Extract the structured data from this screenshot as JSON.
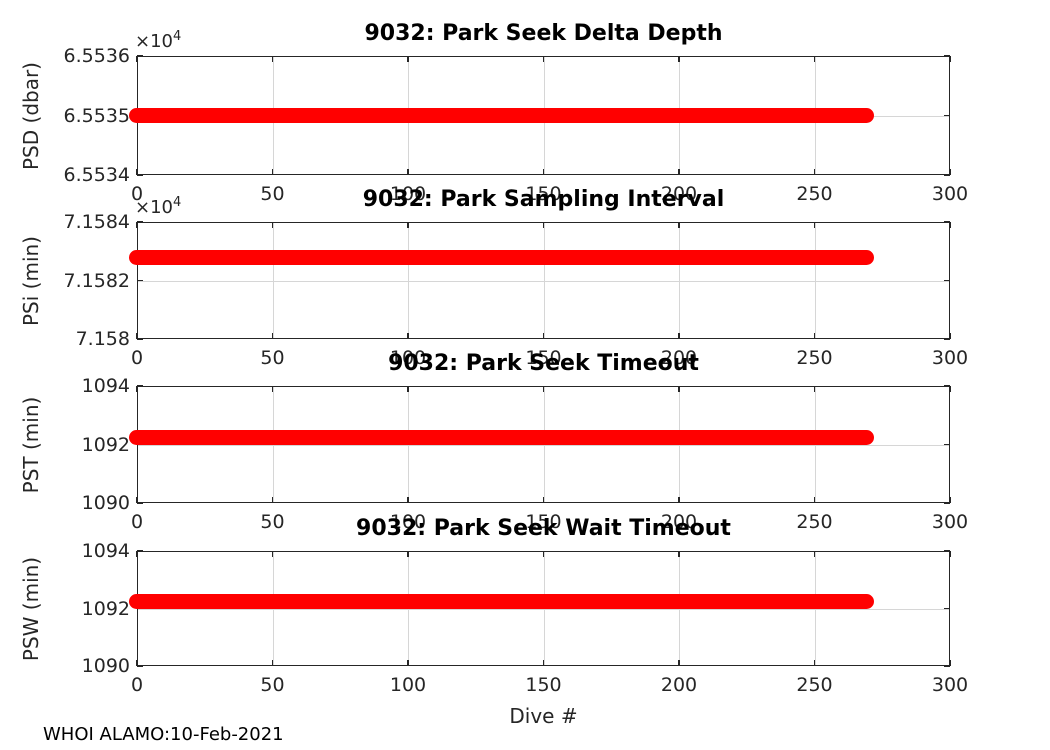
{
  "figure": {
    "xlabel": "Dive #",
    "footer": "WHOI ALAMO:10-Feb-2021",
    "colors": {
      "marker": "#ff0000",
      "axis": "#262626",
      "grid": "#d6d6d6",
      "title": "#000000",
      "background": "#ffffff"
    }
  },
  "chart_data": [
    {
      "type": "scatter",
      "title": "9032: Park Seek Delta Depth",
      "ylabel": "PSD (dbar)",
      "xlim": [
        0,
        300
      ],
      "xticks": [
        0,
        50,
        100,
        150,
        200,
        250,
        300
      ],
      "ylim": [
        65534,
        65536
      ],
      "yticks": [
        65534,
        65535,
        65536
      ],
      "ytick_labels": [
        "6.5534",
        "6.5535",
        "6.5536"
      ],
      "y_multiplier": "×10^4",
      "grid": true,
      "series": [
        {
          "name": "PSD",
          "marker": "filled-circle",
          "x_start": 0,
          "x_end": 269,
          "constant_y": 65535
        }
      ]
    },
    {
      "type": "scatter",
      "title": "9032: Park Sampling Interval",
      "ylabel": "PSi (min)",
      "xlim": [
        0,
        300
      ],
      "xticks": [
        0,
        50,
        100,
        150,
        200,
        250,
        300
      ],
      "ylim": [
        71580,
        71584
      ],
      "yticks": [
        71580,
        71582,
        71584
      ],
      "ytick_labels": [
        "7.158",
        "7.1582",
        "7.1584"
      ],
      "y_multiplier": "×10^4",
      "grid": true,
      "series": [
        {
          "name": "PSi",
          "marker": "filled-circle",
          "x_start": 0,
          "x_end": 269,
          "constant_y": 71582.8
        }
      ]
    },
    {
      "type": "scatter",
      "title": "9032: Park Seek Timeout",
      "ylabel": "PST (min)",
      "xlim": [
        0,
        300
      ],
      "xticks": [
        0,
        50,
        100,
        150,
        200,
        250,
        300
      ],
      "ylim": [
        1090,
        1094
      ],
      "yticks": [
        1090,
        1092,
        1094
      ],
      "ytick_labels": [
        "1090",
        "1092",
        "1094"
      ],
      "y_multiplier": null,
      "grid": true,
      "series": [
        {
          "name": "PST",
          "marker": "filled-circle",
          "x_start": 0,
          "x_end": 269,
          "constant_y": 1092.25
        }
      ]
    },
    {
      "type": "scatter",
      "title": "9032: Park Seek Wait Timeout",
      "ylabel": "PSW (min)",
      "xlim": [
        0,
        300
      ],
      "xticks": [
        0,
        50,
        100,
        150,
        200,
        250,
        300
      ],
      "ylim": [
        1090,
        1094
      ],
      "yticks": [
        1090,
        1092,
        1094
      ],
      "ytick_labels": [
        "1090",
        "1092",
        "1094"
      ],
      "y_multiplier": null,
      "grid": true,
      "series": [
        {
          "name": "PSW",
          "marker": "filled-circle",
          "x_start": 0,
          "x_end": 269,
          "constant_y": 1092.25
        }
      ]
    }
  ]
}
